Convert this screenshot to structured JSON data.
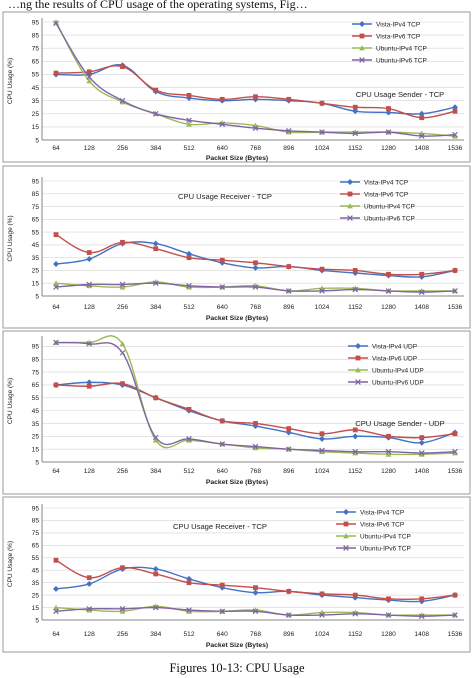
{
  "top_text": "…ng the results of CPU usage of the operating systems, Fig…",
  "caption": "Figures 10-13: CPU Usage",
  "colors": {
    "vista_ipv4": "#4472c4",
    "vista_ipv6": "#c0504d",
    "ubuntu_ipv4": "#9bbb59",
    "ubuntu_ipv6": "#8064a2"
  },
  "chart_data": [
    {
      "type": "line",
      "title": "CPU Usage Sender - TCP",
      "xlabel": "Packet Size (Bytes)",
      "ylabel": "CPU Usage (%)",
      "categories": [
        "64",
        "128",
        "256",
        "384",
        "512",
        "640",
        "768",
        "896",
        "1024",
        "1152",
        "1280",
        "1408",
        "1536"
      ],
      "yticks": [
        5,
        15,
        25,
        35,
        45,
        55,
        65,
        75,
        85,
        95
      ],
      "ylim": [
        5,
        95
      ],
      "grid": true,
      "legend": "top-right",
      "series": [
        {
          "name": "Vista-IPv4 TCP",
          "color": "#4472c4",
          "marker": "diamond",
          "values": [
            55,
            55,
            62,
            42,
            37,
            35,
            36,
            35,
            33,
            27,
            26,
            25,
            30
          ]
        },
        {
          "name": "Vista-IPv6 TCP",
          "color": "#c0504d",
          "marker": "square",
          "values": [
            56,
            57,
            61,
            43,
            39,
            36,
            38,
            36,
            33,
            30,
            29,
            22,
            27
          ]
        },
        {
          "name": "Ubuntu-IPv4 TCP",
          "color": "#9bbb59",
          "marker": "triangle",
          "values": [
            95,
            50,
            34,
            25,
            17,
            18,
            16,
            11,
            11,
            11,
            11,
            10,
            8
          ]
        },
        {
          "name": "Ubuntu-IPv6 TCP",
          "color": "#8064a2",
          "marker": "cross",
          "values": [
            94,
            53,
            35,
            25,
            20,
            17,
            14,
            12,
            11,
            10,
            11,
            8,
            9
          ]
        }
      ]
    },
    {
      "type": "line",
      "title": "CPU Usage Receiver - TCP",
      "xlabel": "Packet Size (Bytes)",
      "ylabel": "CPU Usage (%)",
      "categories": [
        "64",
        "128",
        "256",
        "384",
        "512",
        "640",
        "768",
        "896",
        "1024",
        "1152",
        "1280",
        "1408",
        "1536"
      ],
      "yticks": [
        5,
        15,
        25,
        35,
        45,
        55,
        65,
        75,
        85,
        95
      ],
      "ylim": [
        5,
        95
      ],
      "grid": true,
      "legend": "top-right",
      "series": [
        {
          "name": "Vista-IPv4 TCP",
          "color": "#4472c4",
          "marker": "diamond",
          "values": [
            30,
            34,
            46,
            46,
            38,
            31,
            27,
            28,
            25,
            23,
            21,
            20,
            25
          ]
        },
        {
          "name": "Vista-IPv6 TCP",
          "color": "#c0504d",
          "marker": "square",
          "values": [
            53,
            39,
            47,
            42,
            35,
            33,
            31,
            28,
            26,
            25,
            22,
            22,
            25
          ]
        },
        {
          "name": "Ubuntu-IPv4 TCP",
          "color": "#9bbb59",
          "marker": "triangle",
          "values": [
            15,
            13,
            12,
            16,
            12,
            12,
            13,
            9,
            11,
            11,
            9,
            9,
            9
          ]
        },
        {
          "name": "Ubuntu-IPv6 TCP",
          "color": "#8064a2",
          "marker": "cross",
          "values": [
            12,
            14,
            14,
            15,
            13,
            12,
            12,
            9,
            9,
            10,
            9,
            8,
            9
          ]
        }
      ]
    },
    {
      "type": "line",
      "title": "CPU Usage Sender - UDP",
      "xlabel": "Packet Size (Bytes)",
      "ylabel": "CPU Usage (%)",
      "categories": [
        "64",
        "128",
        "256",
        "384",
        "512",
        "640",
        "768",
        "896",
        "1024",
        "1152",
        "1280",
        "1408",
        "1536"
      ],
      "yticks": [
        5,
        15,
        25,
        35,
        45,
        55,
        65,
        75,
        85,
        95
      ],
      "ylim": [
        5,
        100
      ],
      "grid": true,
      "legend": "top-right",
      "series": [
        {
          "name": "Vista-IPv4 UDP",
          "color": "#4472c4",
          "marker": "diamond",
          "values": [
            65,
            67,
            65,
            55,
            45,
            37,
            33,
            28,
            23,
            25,
            24,
            20,
            28
          ]
        },
        {
          "name": "Vista-IPv6 UDP",
          "color": "#c0504d",
          "marker": "square",
          "values": [
            65,
            64,
            66,
            55,
            46,
            37,
            35,
            31,
            27,
            30,
            25,
            24,
            27
          ]
        },
        {
          "name": "Ubuntu-IPv4 UDP",
          "color": "#9bbb59",
          "marker": "triangle",
          "values": [
            98,
            98,
            97,
            22,
            22,
            19,
            16,
            15,
            13,
            12,
            11,
            11,
            12
          ]
        },
        {
          "name": "Ubuntu-IPv6 UDP",
          "color": "#8064a2",
          "marker": "cross",
          "values": [
            98,
            97,
            90,
            24,
            23,
            19,
            17,
            15,
            14,
            13,
            13,
            12,
            13
          ]
        }
      ]
    },
    {
      "type": "line",
      "title": "CPU Usage Receiver - TCP",
      "xlabel": "Packet Size (Bytes)",
      "ylabel": "CPU Usage (%)",
      "categories": [
        "64",
        "128",
        "256",
        "384",
        "512",
        "640",
        "768",
        "896",
        "1024",
        "1152",
        "1280",
        "1408",
        "1536"
      ],
      "yticks": [
        5,
        15,
        25,
        35,
        45,
        55,
        65,
        75,
        85,
        95
      ],
      "ylim": [
        5,
        95
      ],
      "grid": true,
      "legend": "top-right",
      "series": [
        {
          "name": "Vista-IPv4 TCP",
          "color": "#4472c4",
          "marker": "diamond",
          "values": [
            30,
            34,
            46,
            46,
            38,
            31,
            27,
            28,
            25,
            23,
            21,
            20,
            25
          ]
        },
        {
          "name": "Vista-IPv6 TCP",
          "color": "#c0504d",
          "marker": "square",
          "values": [
            53,
            39,
            47,
            42,
            35,
            33,
            31,
            28,
            26,
            25,
            22,
            22,
            25
          ]
        },
        {
          "name": "Ubuntu-IPv4 TCP",
          "color": "#9bbb59",
          "marker": "triangle",
          "values": [
            15,
            13,
            12,
            16,
            12,
            12,
            13,
            9,
            11,
            11,
            9,
            9,
            9
          ]
        },
        {
          "name": "Ubuntu-IPv6 TCP",
          "color": "#8064a2",
          "marker": "cross",
          "values": [
            12,
            14,
            14,
            15,
            13,
            12,
            12,
            9,
            9,
            10,
            9,
            8,
            9
          ]
        }
      ]
    }
  ]
}
